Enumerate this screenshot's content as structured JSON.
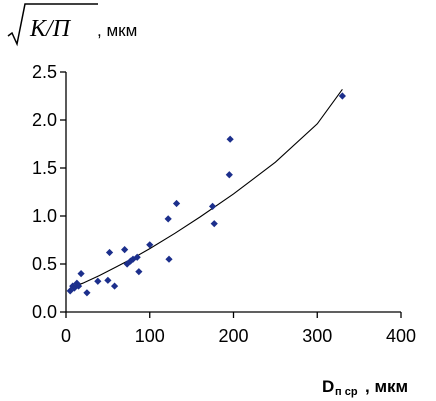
{
  "chart_data": {
    "type": "scatter",
    "ylabel": {
      "radicand": "K/П",
      "unit": ", мкм"
    },
    "xlabel": {
      "main": "D",
      "sub": "п ср",
      "unit": ", мкм"
    },
    "xlim": [
      0,
      400
    ],
    "ylim": [
      0,
      2.5
    ],
    "x_ticks": [
      0,
      100,
      200,
      300,
      400
    ],
    "x_tick_labels": [
      "0",
      "100",
      "200",
      "300",
      "400"
    ],
    "y_ticks": [
      0,
      0.5,
      1.0,
      1.5,
      2.0,
      2.5
    ],
    "y_tick_labels": [
      "0.0",
      "0.5",
      "1.0",
      "1.5",
      "2.0",
      "2.5"
    ],
    "grid": false,
    "legend": "none",
    "colors": {
      "points": "#1c2f8c",
      "trend": "#000000",
      "axes": "#000000"
    },
    "series": [
      {
        "marker": "diamond",
        "x": [
          5,
          8,
          10,
          13,
          15,
          18,
          25,
          38,
          50,
          52,
          58,
          70,
          73,
          77,
          80,
          85,
          87,
          100,
          122,
          123,
          132,
          175,
          177,
          195,
          196,
          330
        ],
        "y": [
          0.22,
          0.27,
          0.25,
          0.3,
          0.27,
          0.4,
          0.2,
          0.32,
          0.33,
          0.62,
          0.27,
          0.65,
          0.5,
          0.53,
          0.55,
          0.57,
          0.42,
          0.7,
          0.97,
          0.55,
          1.13,
          1.1,
          0.92,
          1.43,
          1.8,
          2.25
        ]
      }
    ],
    "trendline": {
      "type": "power",
      "x": [
        5,
        20,
        40,
        60,
        80,
        100,
        130,
        160,
        200,
        250,
        300,
        330
      ],
      "y": [
        0.25,
        0.3,
        0.38,
        0.47,
        0.56,
        0.66,
        0.82,
        0.99,
        1.23,
        1.56,
        1.96,
        2.32
      ]
    }
  }
}
